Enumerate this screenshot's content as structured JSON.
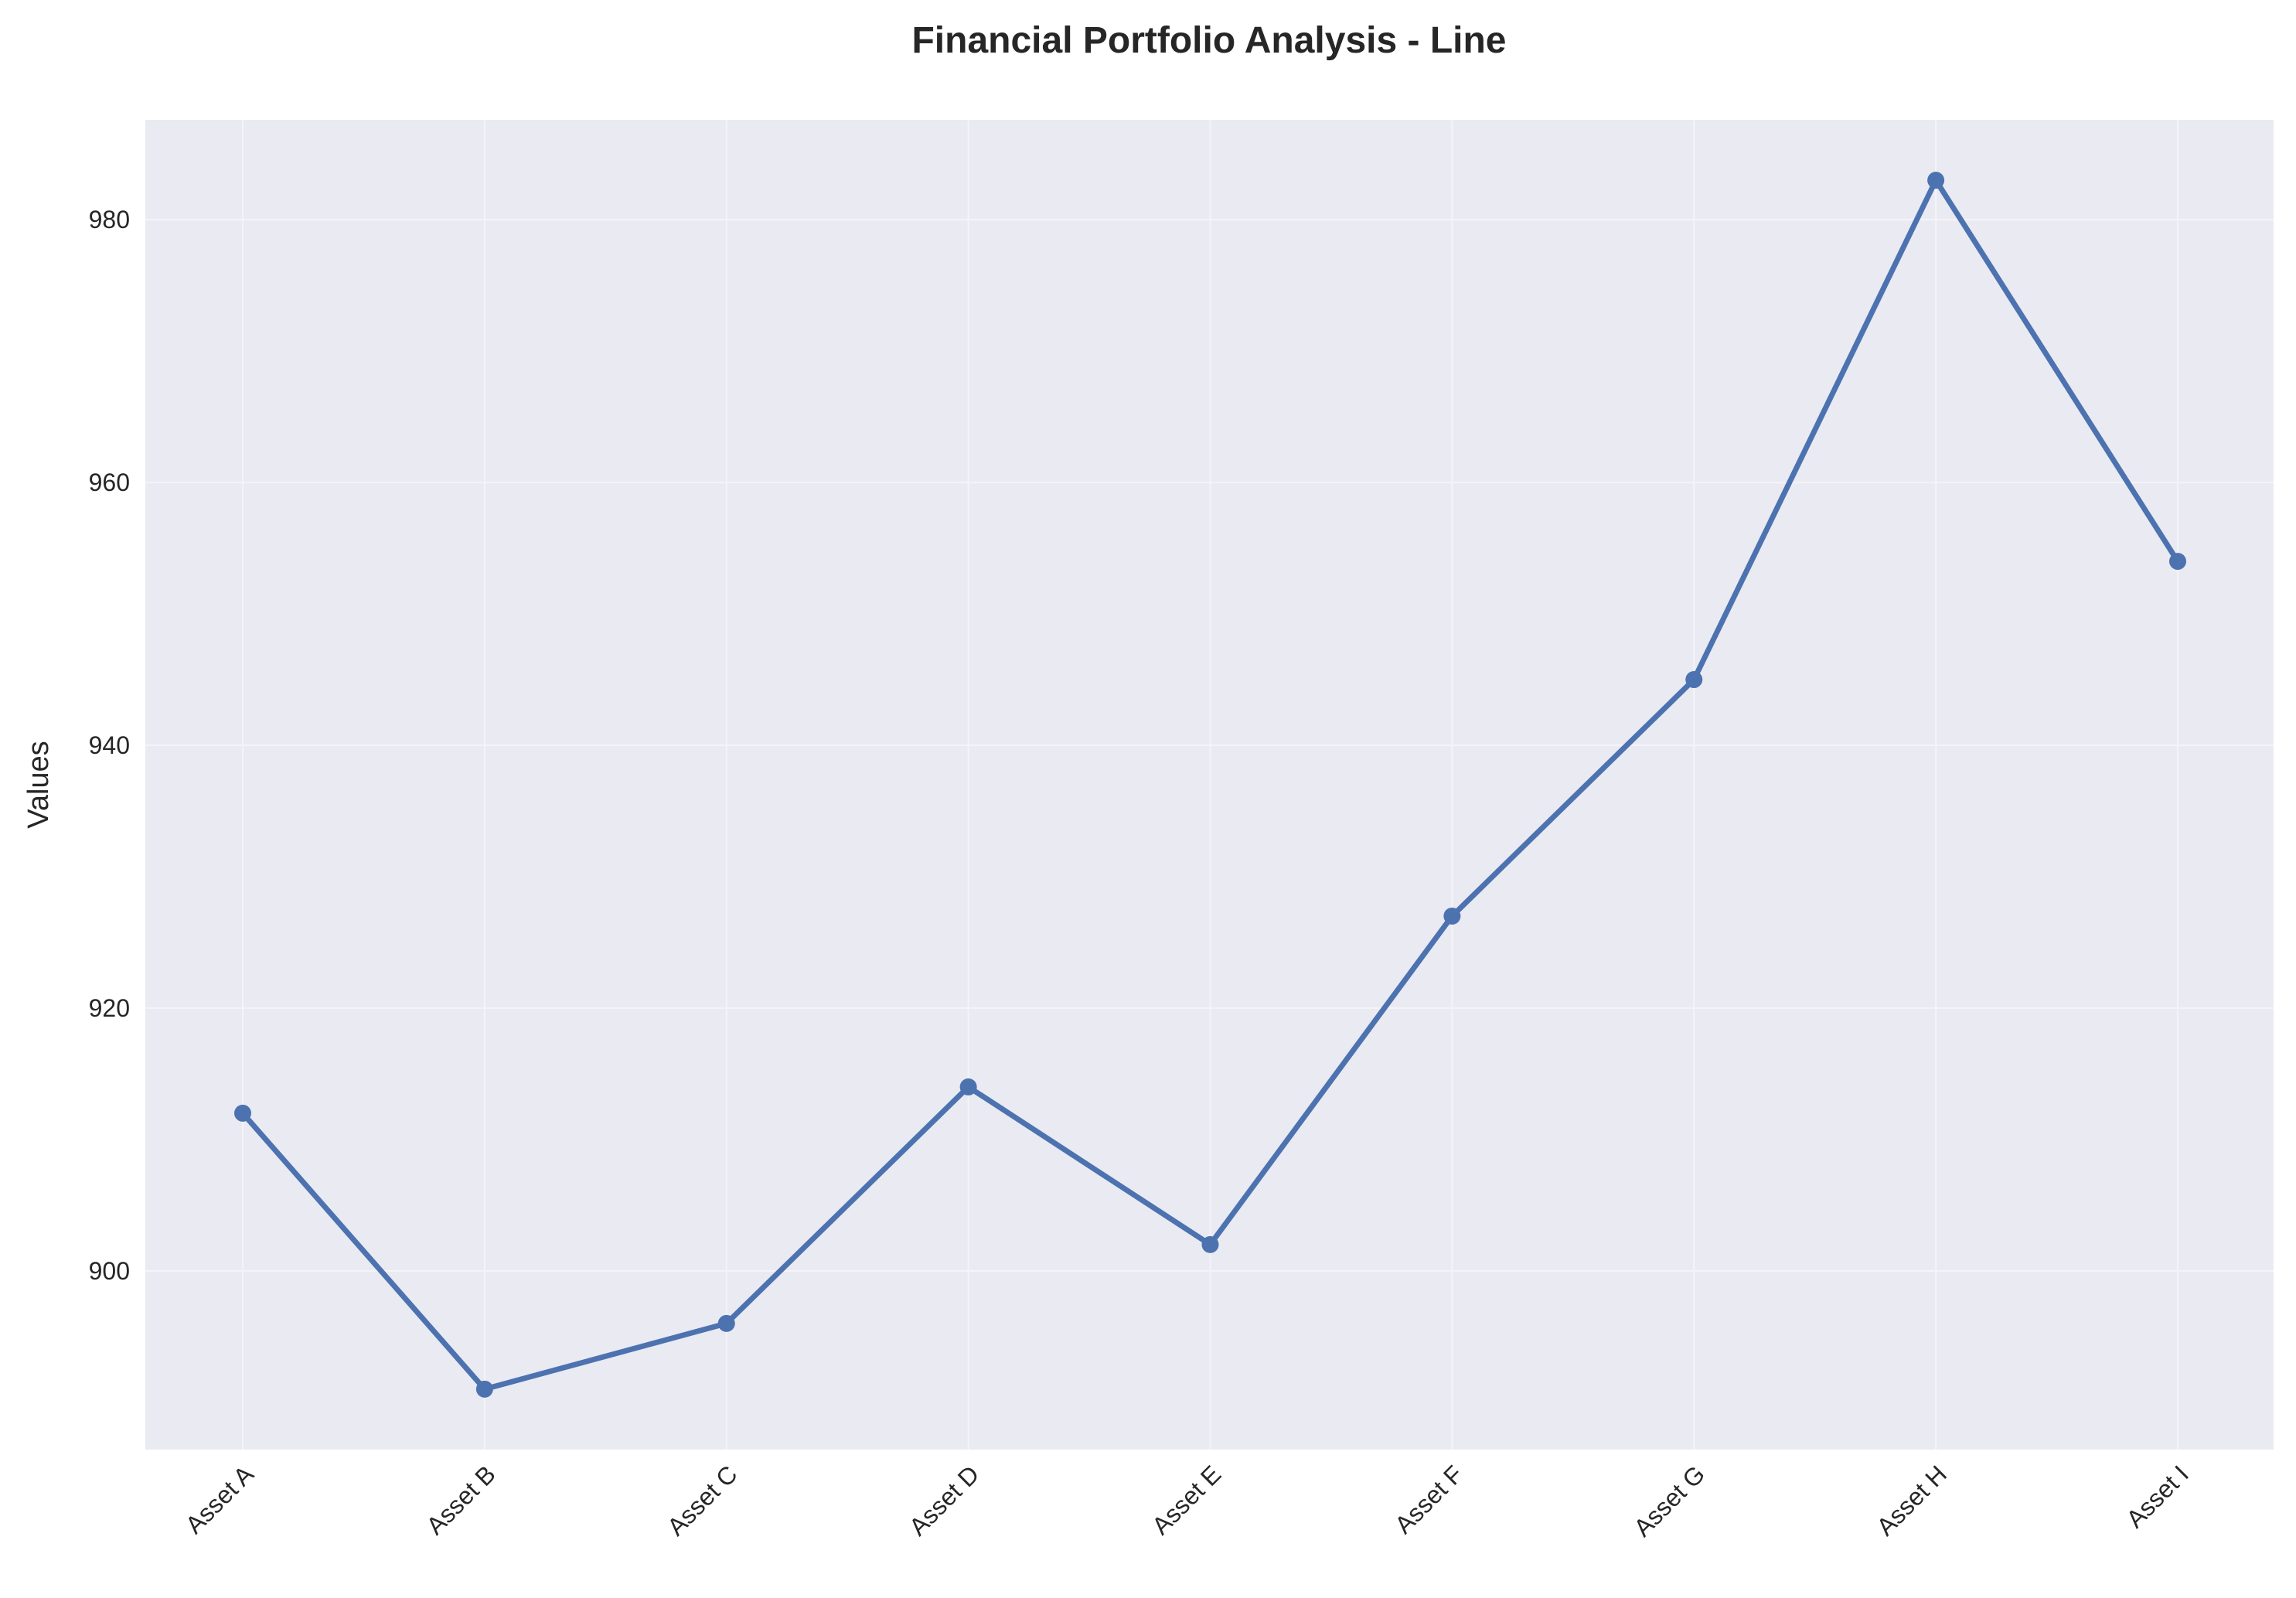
{
  "chart_data": {
    "type": "line",
    "title": "Financial Portfolio Analysis - Line",
    "xlabel": "",
    "ylabel": "Values",
    "categories": [
      "Asset A",
      "Asset B",
      "Asset C",
      "Asset D",
      "Asset E",
      "Asset F",
      "Asset G",
      "Asset H",
      "Asset I"
    ],
    "series": [
      {
        "values": [
          912,
          891,
          896,
          914,
          902,
          927,
          945,
          983,
          954
        ]
      }
    ],
    "ylim": [
      886.4,
      987.6
    ],
    "yticks": [
      900,
      920,
      940,
      960,
      980
    ],
    "grid": true,
    "legend": "none",
    "colors": {
      "line": "#4c72b0",
      "plot_background": "#eaeaf2",
      "grid": "#f4f4f8"
    }
  }
}
